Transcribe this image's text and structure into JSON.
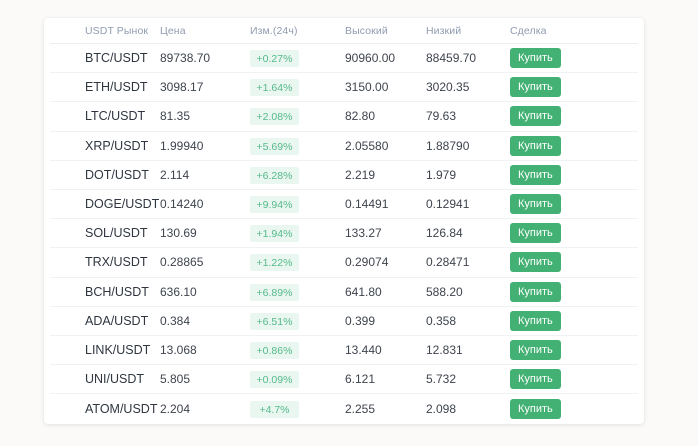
{
  "page": {
    "background_color": "#fbfaf8",
    "card_color": "#ffffff"
  },
  "colors": {
    "accent_green": "#43b173",
    "badge_background": "#e9f7f0",
    "badge_text": "#55b98a",
    "header_text": "#909cb0",
    "row_divider": "#f0f1f2"
  },
  "table": {
    "columns": [
      "USDT Рынок",
      "Цена",
      "Изм.(24ч)",
      "Высокий",
      "Низкий",
      "Сделка"
    ],
    "buy_label": "Купить",
    "rows": [
      {
        "pair": "BTC/USDT",
        "price": "89738.70",
        "change": "+0.27%",
        "high": "90960.00",
        "low": "88459.70"
      },
      {
        "pair": "ETH/USDT",
        "price": "3098.17",
        "change": "+1.64%",
        "high": "3150.00",
        "low": "3020.35"
      },
      {
        "pair": "LTC/USDT",
        "price": "81.35",
        "change": "+2.08%",
        "high": "82.80",
        "low": "79.63"
      },
      {
        "pair": "XRP/USDT",
        "price": "1.99940",
        "change": "+5.69%",
        "high": "2.05580",
        "low": "1.88790"
      },
      {
        "pair": "DOT/USDT",
        "price": "2.114",
        "change": "+6.28%",
        "high": "2.219",
        "low": "1.979"
      },
      {
        "pair": "DOGE/USDT",
        "price": "0.14240",
        "change": "+9.94%",
        "high": "0.14491",
        "low": "0.12941"
      },
      {
        "pair": "SOL/USDT",
        "price": "130.69",
        "change": "+1.94%",
        "high": "133.27",
        "low": "126.84"
      },
      {
        "pair": "TRX/USDT",
        "price": "0.28865",
        "change": "+1.22%",
        "high": "0.29074",
        "low": "0.28471"
      },
      {
        "pair": "BCH/USDT",
        "price": "636.10",
        "change": "+6.89%",
        "high": "641.80",
        "low": "588.20"
      },
      {
        "pair": "ADA/USDT",
        "price": "0.384",
        "change": "+6.51%",
        "high": "0.399",
        "low": "0.358"
      },
      {
        "pair": "LINK/USDT",
        "price": "13.068",
        "change": "+0.86%",
        "high": "13.440",
        "low": "12.831"
      },
      {
        "pair": "UNI/USDT",
        "price": "5.805",
        "change": "+0.09%",
        "high": "6.121",
        "low": "5.732"
      },
      {
        "pair": "ATOM/USDT",
        "price": "2.204",
        "change": "+4.7%",
        "high": "2.255",
        "low": "2.098"
      }
    ]
  }
}
